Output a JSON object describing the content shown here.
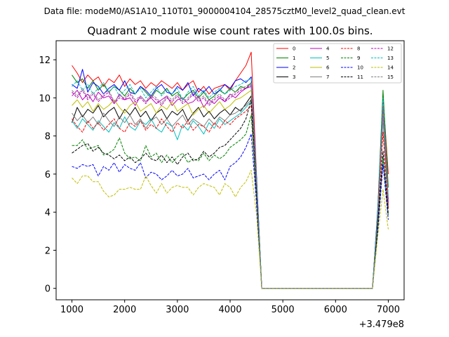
{
  "figure": {
    "suptitle": "Data file: modeM0/AS1A10_110T01_9000004104_28575cztM0_level2_quad_clean.evt"
  },
  "chart_data": {
    "type": "line",
    "title": "Quadrant 2 module wise count rates with 100.0s bins.",
    "xlabel": "",
    "ylabel": "",
    "x_offset_label": "+3.479e8",
    "xlim": [
      700,
      7300
    ],
    "ylim": [
      -0.6,
      13.0
    ],
    "xticks": [
      1000,
      2000,
      3000,
      4000,
      5000,
      6000,
      7000
    ],
    "yticks": [
      0,
      2,
      4,
      6,
      8,
      10,
      12
    ],
    "grid": false,
    "legend": {
      "position": "top-right",
      "columns": 4
    },
    "x": [
      1000,
      1100,
      1200,
      1300,
      1400,
      1500,
      1600,
      1700,
      1800,
      1900,
      2000,
      2100,
      2200,
      2300,
      2400,
      2500,
      2600,
      2700,
      2800,
      2900,
      3000,
      3100,
      3200,
      3300,
      3400,
      3500,
      3600,
      3700,
      3800,
      3900,
      4000,
      4100,
      4200,
      4300,
      4400,
      4500,
      4600,
      4700,
      4800,
      4900,
      5000,
      5100,
      5200,
      5300,
      5400,
      5500,
      5600,
      5700,
      5800,
      5900,
      6000,
      6100,
      6200,
      6300,
      6400,
      6500,
      6600,
      6700,
      6800,
      6900,
      7000
    ],
    "series": [
      {
        "name": "0",
        "color": "#ff0000",
        "dash": "solid",
        "values": [
          11.7,
          11.3,
          10.8,
          11.2,
          10.9,
          11.1,
          10.6,
          11.0,
          10.8,
          11.2,
          10.6,
          11.0,
          10.7,
          10.9,
          10.5,
          10.8,
          10.6,
          10.9,
          10.7,
          10.5,
          10.8,
          10.4,
          10.7,
          10.9,
          10.3,
          10.6,
          10.2,
          10.5,
          10.6,
          10.7,
          10.4,
          10.9,
          11.3,
          11.7,
          12.4,
          6.0,
          0.0,
          0.0,
          0.0,
          0.0,
          0.0,
          0.0,
          0.0,
          0.0,
          0.0,
          0.0,
          0.0,
          0.0,
          0.0,
          0.0,
          0.0,
          0.0,
          0.0,
          0.0,
          0.0,
          0.0,
          0.0,
          0.0,
          4.0,
          10.1,
          6.0
        ]
      },
      {
        "name": "1",
        "color": "#008000",
        "dash": "solid",
        "values": [
          11.2,
          10.8,
          11.0,
          10.5,
          10.9,
          10.4,
          10.7,
          10.3,
          10.6,
          10.4,
          10.1,
          10.5,
          10.2,
          10.6,
          10.3,
          10.0,
          10.4,
          10.2,
          10.5,
          10.1,
          10.3,
          9.9,
          10.2,
          10.4,
          10.0,
          10.3,
          9.9,
          10.1,
          10.4,
          10.2,
          10.5,
          10.3,
          10.6,
          10.5,
          10.8,
          5.8,
          0.0,
          0.0,
          0.0,
          0.0,
          0.0,
          0.0,
          0.0,
          0.0,
          0.0,
          0.0,
          0.0,
          0.0,
          0.0,
          0.0,
          0.0,
          0.0,
          0.0,
          0.0,
          0.0,
          0.0,
          0.0,
          0.0,
          4.2,
          10.4,
          5.3
        ]
      },
      {
        "name": "2",
        "color": "#0000ff",
        "dash": "solid",
        "values": [
          10.7,
          10.5,
          11.5,
          10.3,
          10.8,
          10.6,
          10.2,
          10.5,
          10.7,
          10.4,
          10.9,
          10.3,
          10.2,
          10.6,
          10.4,
          10.1,
          10.5,
          10.7,
          10.3,
          10.2,
          10.6,
          10.4,
          10.8,
          10.1,
          10.5,
          10.3,
          10.6,
          10.2,
          10.4,
          10.7,
          10.5,
          10.9,
          11.0,
          10.8,
          11.1,
          5.9,
          0.0,
          0.0,
          0.0,
          0.0,
          0.0,
          0.0,
          0.0,
          0.0,
          0.0,
          0.0,
          0.0,
          0.0,
          0.0,
          0.0,
          0.0,
          0.0,
          0.0,
          0.0,
          0.0,
          0.0,
          0.0,
          0.0,
          4.1,
          9.8,
          4.6
        ]
      },
      {
        "name": "3",
        "color": "#000000",
        "dash": "solid",
        "values": [
          8.7,
          9.5,
          9.0,
          9.4,
          9.2,
          9.6,
          9.0,
          9.3,
          9.5,
          8.9,
          9.4,
          9.1,
          9.5,
          9.0,
          9.3,
          8.8,
          9.2,
          9.4,
          8.9,
          9.3,
          9.1,
          9.4,
          8.8,
          9.2,
          9.5,
          9.0,
          9.3,
          8.9,
          9.2,
          9.4,
          9.1,
          9.5,
          9.3,
          9.7,
          10.1,
          5.4,
          0.0,
          0.0,
          0.0,
          0.0,
          0.0,
          0.0,
          0.0,
          0.0,
          0.0,
          0.0,
          0.0,
          0.0,
          0.0,
          0.0,
          0.0,
          0.0,
          0.0,
          0.0,
          0.0,
          0.0,
          0.0,
          0.0,
          3.8,
          9.2,
          4.2
        ]
      },
      {
        "name": "4",
        "color": "#bf00bf",
        "dash": "solid",
        "values": [
          10.1,
          10.4,
          9.9,
          10.2,
          9.8,
          10.3,
          10.0,
          10.1,
          9.7,
          10.2,
          9.9,
          10.0,
          9.6,
          10.1,
          9.8,
          10.0,
          9.7,
          9.9,
          10.1,
          9.6,
          9.9,
          10.0,
          9.7,
          9.8,
          10.1,
          9.5,
          9.9,
          9.7,
          10.0,
          9.8,
          10.2,
          10.0,
          10.3,
          10.5,
          10.6,
          5.6,
          0.0,
          0.0,
          0.0,
          0.0,
          0.0,
          0.0,
          0.0,
          0.0,
          0.0,
          0.0,
          0.0,
          0.0,
          0.0,
          0.0,
          0.0,
          0.0,
          0.0,
          0.0,
          0.0,
          0.0,
          0.0,
          0.0,
          3.9,
          9.7,
          4.6
        ]
      },
      {
        "name": "5",
        "color": "#00bfbf",
        "dash": "solid",
        "values": [
          8.8,
          8.4,
          8.9,
          8.6,
          8.3,
          8.8,
          8.5,
          8.2,
          8.7,
          8.4,
          9.0,
          8.5,
          8.3,
          8.8,
          8.6,
          8.9,
          8.4,
          8.2,
          8.7,
          8.5,
          7.8,
          8.6,
          8.3,
          8.8,
          8.5,
          8.1,
          8.7,
          8.4,
          8.9,
          8.6,
          8.8,
          9.0,
          9.2,
          9.5,
          9.8,
          5.2,
          0.0,
          0.0,
          0.0,
          0.0,
          0.0,
          0.0,
          0.0,
          0.0,
          0.0,
          0.0,
          0.0,
          0.0,
          0.0,
          0.0,
          0.0,
          0.0,
          0.0,
          0.0,
          0.0,
          0.0,
          0.0,
          0.0,
          3.6,
          8.9,
          4.2
        ]
      },
      {
        "name": "6",
        "color": "#bfbf00",
        "dash": "solid",
        "values": [
          9.6,
          9.9,
          9.5,
          9.8,
          9.3,
          9.7,
          9.4,
          9.6,
          9.9,
          9.5,
          9.2,
          9.6,
          9.8,
          9.3,
          9.5,
          9.7,
          9.2,
          9.6,
          9.4,
          9.8,
          9.3,
          9.5,
          9.7,
          9.1,
          9.4,
          9.6,
          9.2,
          9.5,
          9.8,
          9.4,
          9.6,
          9.9,
          10.0,
          10.2,
          10.4,
          5.5,
          0.0,
          0.0,
          0.0,
          0.0,
          0.0,
          0.0,
          0.0,
          0.0,
          0.0,
          0.0,
          0.0,
          0.0,
          0.0,
          0.0,
          0.0,
          0.0,
          0.0,
          0.0,
          0.0,
          0.0,
          0.0,
          0.0,
          3.8,
          9.4,
          4.4
        ]
      },
      {
        "name": "7",
        "color": "#808080",
        "dash": "solid",
        "values": [
          9.2,
          8.8,
          9.1,
          8.7,
          9.0,
          8.6,
          9.2,
          8.8,
          8.5,
          9.0,
          8.7,
          9.1,
          8.6,
          8.9,
          8.4,
          8.8,
          9.0,
          8.6,
          8.9,
          8.5,
          8.8,
          9.1,
          8.6,
          8.9,
          8.7,
          8.5,
          8.9,
          8.6,
          9.0,
          8.8,
          9.1,
          9.2,
          9.4,
          9.6,
          9.9,
          5.3,
          0.0,
          0.0,
          0.0,
          0.0,
          0.0,
          0.0,
          0.0,
          0.0,
          0.0,
          0.0,
          0.0,
          0.0,
          0.0,
          0.0,
          0.0,
          0.0,
          0.0,
          0.0,
          0.0,
          0.0,
          0.0,
          0.0,
          3.7,
          9.0,
          4.3
        ]
      },
      {
        "name": "8",
        "color": "#ff0000",
        "dash": "dashed",
        "values": [
          8.9,
          8.5,
          8.2,
          8.8,
          8.4,
          8.7,
          8.3,
          8.6,
          8.9,
          8.4,
          8.2,
          8.7,
          8.5,
          8.8,
          8.3,
          8.6,
          8.4,
          8.9,
          8.5,
          8.2,
          8.7,
          8.4,
          8.8,
          8.3,
          8.6,
          8.5,
          8.2,
          8.7,
          8.4,
          8.8,
          8.6,
          8.9,
          9.1,
          9.3,
          9.6,
          5.0,
          0.0,
          0.0,
          0.0,
          0.0,
          0.0,
          0.0,
          0.0,
          0.0,
          0.0,
          0.0,
          0.0,
          0.0,
          0.0,
          0.0,
          0.0,
          0.0,
          0.0,
          0.0,
          0.0,
          0.0,
          0.0,
          0.0,
          3.5,
          8.2,
          4.2
        ]
      },
      {
        "name": "9",
        "color": "#008000",
        "dash": "dashed",
        "values": [
          7.5,
          7.5,
          7.8,
          7.3,
          7.4,
          7.5,
          7.0,
          7.1,
          7.3,
          7.9,
          7.1,
          6.8,
          6.9,
          6.7,
          7.5,
          6.9,
          7.1,
          6.6,
          7.0,
          6.6,
          6.9,
          7.1,
          6.6,
          6.8,
          6.7,
          7.1,
          6.7,
          7.0,
          6.8,
          7.0,
          7.4,
          7.6,
          7.8,
          8.1,
          9.1,
          4.8,
          0.0,
          0.0,
          0.0,
          0.0,
          0.0,
          0.0,
          0.0,
          0.0,
          0.0,
          0.0,
          0.0,
          0.0,
          0.0,
          0.0,
          0.0,
          0.0,
          0.0,
          0.0,
          0.0,
          0.0,
          0.0,
          0.0,
          3.2,
          6.9,
          3.8
        ]
      },
      {
        "name": "10",
        "color": "#0000ff",
        "dash": "dashed",
        "values": [
          6.4,
          6.3,
          6.5,
          6.4,
          6.5,
          5.9,
          6.4,
          6.2,
          6.6,
          6.1,
          6.5,
          6.3,
          6.2,
          6.6,
          5.8,
          6.1,
          6.0,
          5.7,
          5.9,
          6.2,
          5.9,
          6.0,
          6.3,
          5.8,
          5.9,
          6.0,
          5.7,
          6.0,
          6.2,
          5.7,
          6.4,
          6.6,
          6.9,
          7.4,
          8.1,
          4.5,
          0.0,
          0.0,
          0.0,
          0.0,
          0.0,
          0.0,
          0.0,
          0.0,
          0.0,
          0.0,
          0.0,
          0.0,
          0.0,
          0.0,
          0.0,
          0.0,
          0.0,
          0.0,
          0.0,
          0.0,
          0.0,
          0.0,
          3.0,
          6.5,
          3.6
        ]
      },
      {
        "name": "11",
        "color": "#000000",
        "dash": "dashed",
        "values": [
          7.1,
          7.3,
          7.5,
          7.6,
          7.2,
          7.4,
          7.1,
          7.0,
          6.8,
          7.0,
          6.7,
          6.9,
          6.6,
          6.8,
          7.1,
          6.8,
          6.7,
          7.0,
          6.6,
          6.9,
          6.5,
          6.9,
          7.1,
          6.7,
          6.8,
          7.2,
          6.9,
          7.1,
          7.4,
          7.5,
          7.8,
          8.1,
          8.4,
          8.9,
          9.9,
          5.1,
          0.0,
          0.0,
          0.0,
          0.0,
          0.0,
          0.0,
          0.0,
          0.0,
          0.0,
          0.0,
          0.0,
          0.0,
          0.0,
          0.0,
          0.0,
          0.0,
          0.0,
          0.0,
          0.0,
          0.0,
          0.0,
          0.0,
          3.3,
          7.2,
          3.9
        ]
      },
      {
        "name": "12",
        "color": "#bf00bf",
        "dash": "dashed",
        "values": [
          10.3,
          10.0,
          10.4,
          9.9,
          10.2,
          9.8,
          10.1,
          10.3,
          9.7,
          10.0,
          9.9,
          10.2,
          9.8,
          10.0,
          9.7,
          10.1,
          9.9,
          9.6,
          10.0,
          9.8,
          10.1,
          9.7,
          9.9,
          10.2,
          9.8,
          10.0,
          9.6,
          9.9,
          10.1,
          9.8,
          10.0,
          10.2,
          10.4,
          10.5,
          10.7,
          5.6,
          0.0,
          0.0,
          0.0,
          0.0,
          0.0,
          0.0,
          0.0,
          0.0,
          0.0,
          0.0,
          0.0,
          0.0,
          0.0,
          0.0,
          0.0,
          0.0,
          0.0,
          0.0,
          0.0,
          0.0,
          0.0,
          0.0,
          3.9,
          9.6,
          4.5
        ]
      },
      {
        "name": "13",
        "color": "#00bfbf",
        "dash": "dashed",
        "values": [
          10.6,
          10.9,
          10.4,
          10.7,
          10.2,
          10.5,
          10.8,
          10.3,
          10.6,
          10.1,
          10.4,
          10.7,
          10.2,
          10.5,
          10.0,
          10.3,
          10.6,
          10.1,
          10.4,
          10.2,
          10.5,
          9.9,
          10.3,
          10.6,
          10.1,
          10.4,
          10.0,
          10.3,
          10.5,
          10.2,
          10.4,
          10.6,
          10.7,
          10.9,
          11.0,
          5.8,
          0.0,
          0.0,
          0.0,
          0.0,
          0.0,
          0.0,
          0.0,
          0.0,
          0.0,
          0.0,
          0.0,
          0.0,
          0.0,
          0.0,
          0.0,
          0.0,
          0.0,
          0.0,
          0.0,
          0.0,
          0.0,
          0.0,
          4.0,
          10.0,
          4.8
        ]
      },
      {
        "name": "14",
        "color": "#bfbf00",
        "dash": "dashed",
        "values": [
          5.8,
          5.5,
          5.9,
          5.9,
          5.6,
          5.6,
          5.1,
          4.8,
          4.9,
          5.2,
          5.2,
          5.3,
          5.2,
          5.2,
          5.9,
          5.4,
          5.0,
          5.5,
          5.0,
          5.3,
          5.4,
          5.3,
          5.3,
          4.9,
          5.3,
          5.5,
          5.4,
          5.3,
          4.9,
          5.5,
          5.3,
          4.8,
          5.3,
          5.6,
          6.2,
          3.9,
          0.0,
          0.0,
          0.0,
          0.0,
          0.0,
          0.0,
          0.0,
          0.0,
          0.0,
          0.0,
          0.0,
          0.0,
          0.0,
          0.0,
          0.0,
          0.0,
          0.0,
          0.0,
          0.0,
          0.0,
          0.0,
          0.0,
          2.7,
          5.2,
          3.1
        ]
      },
      {
        "name": "15",
        "color": "#808080",
        "dash": "dashed",
        "values": [
          10.4,
          10.1,
          10.5,
          10.0,
          10.3,
          9.9,
          10.2,
          10.4,
          9.8,
          10.1,
          10.0,
          10.3,
          9.9,
          10.1,
          9.8,
          10.2,
          10.0,
          9.7,
          10.1,
          9.9,
          10.2,
          9.8,
          10.0,
          10.3,
          9.9,
          10.1,
          9.7,
          10.0,
          10.2,
          9.9,
          10.1,
          10.3,
          10.5,
          10.6,
          10.8,
          5.7,
          0.0,
          0.0,
          0.0,
          0.0,
          0.0,
          0.0,
          0.0,
          0.0,
          0.0,
          0.0,
          0.0,
          0.0,
          0.0,
          0.0,
          0.0,
          0.0,
          0.0,
          0.0,
          0.0,
          0.0,
          0.0,
          0.0,
          3.9,
          9.7,
          4.6
        ]
      }
    ]
  }
}
